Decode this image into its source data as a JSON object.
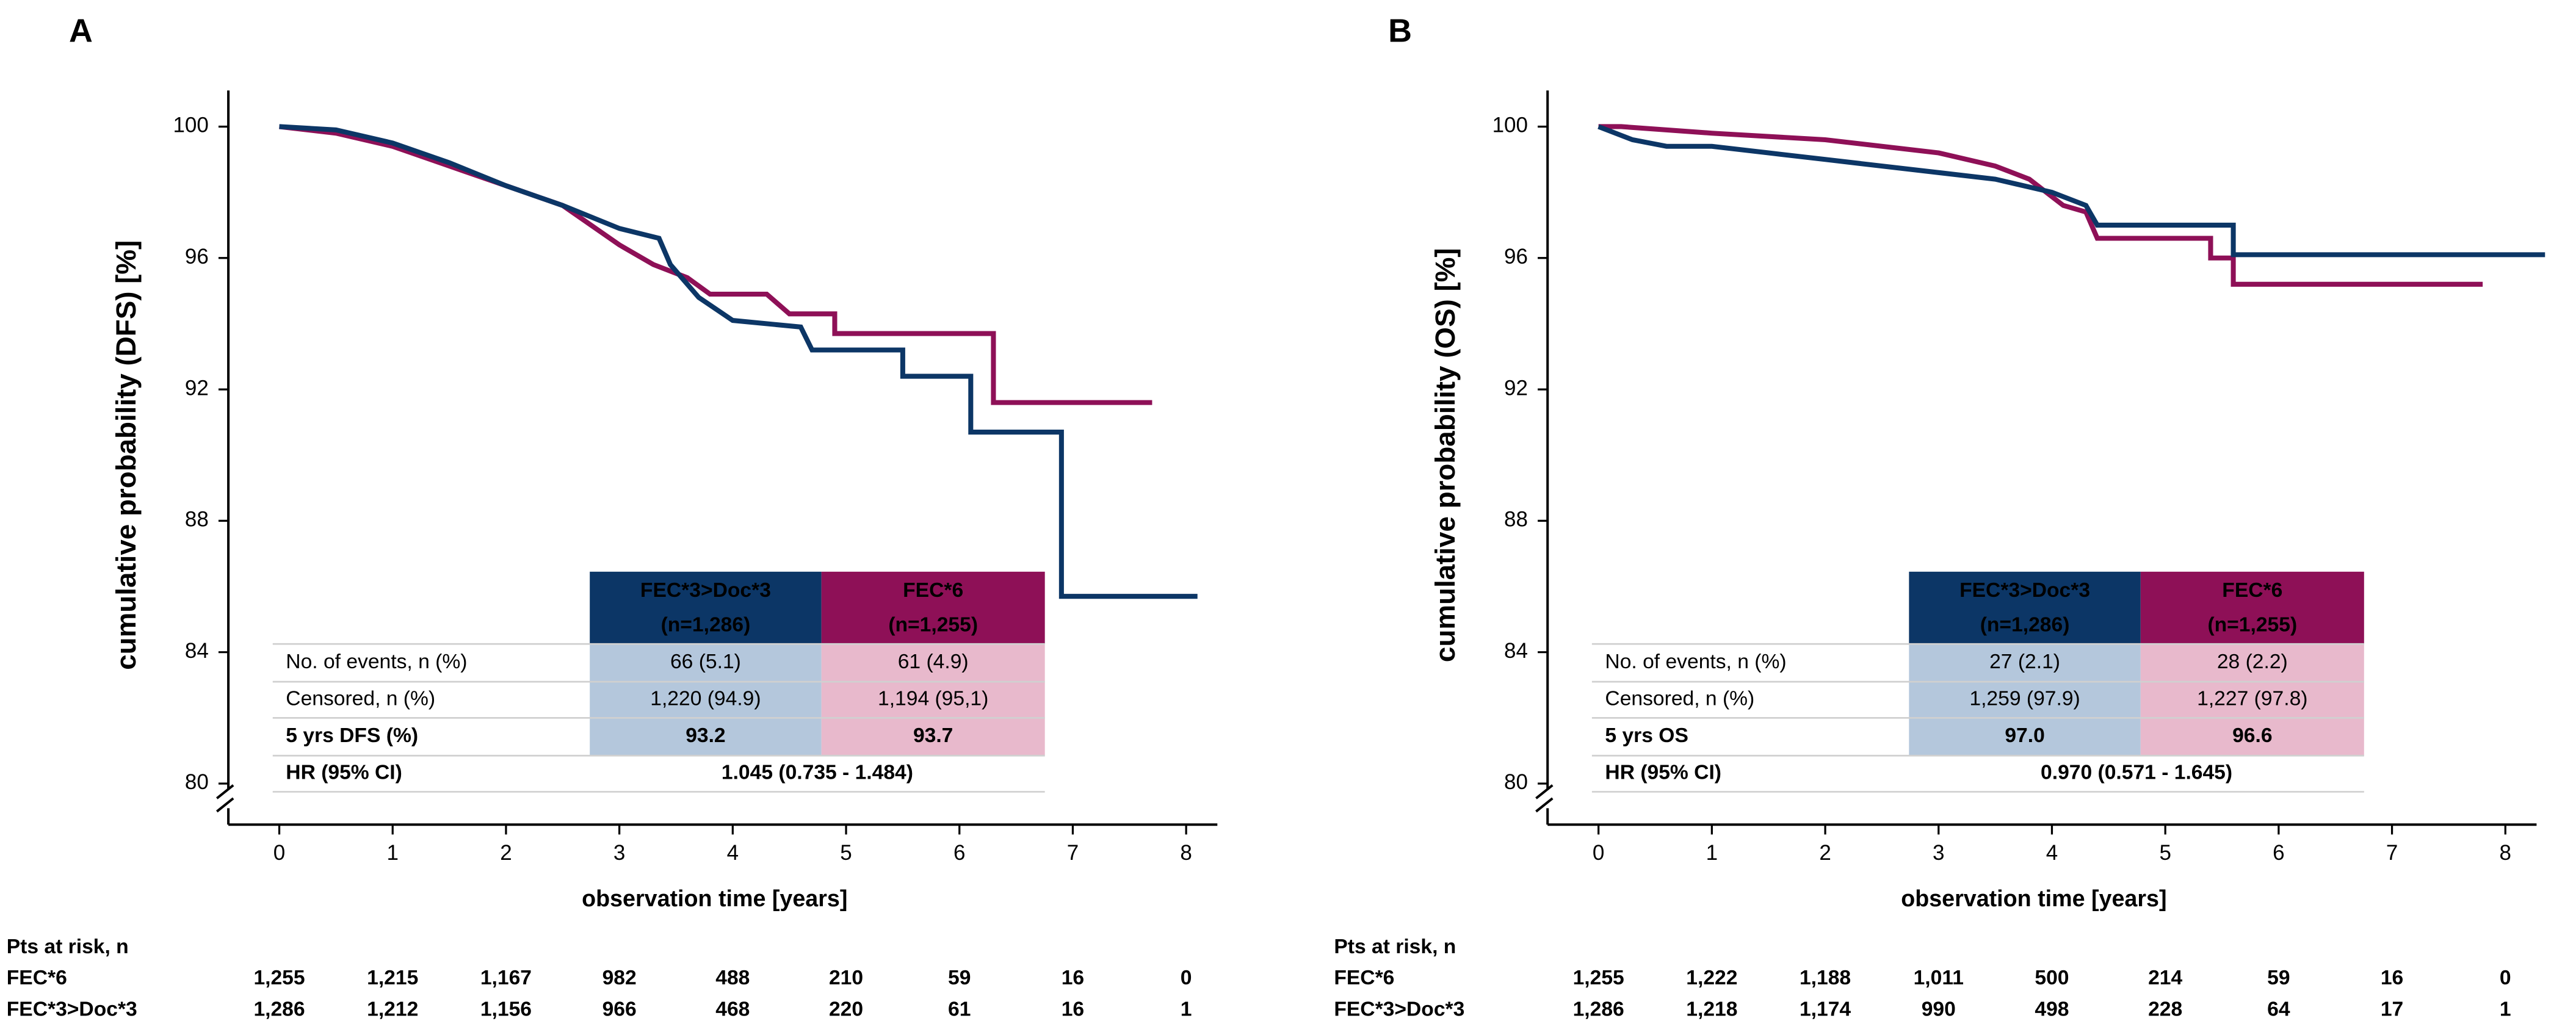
{
  "chart_data": [
    {
      "type": "line",
      "panel": "A",
      "xlabel": "observation time [years]",
      "ylabel": "cumulative probability (DFS) [%]",
      "xlim": [
        0,
        8
      ],
      "ylim": [
        80,
        100
      ],
      "xticks": [
        0,
        1,
        2,
        3,
        4,
        5,
        6,
        7,
        8
      ],
      "yticks": [
        80,
        84,
        88,
        92,
        96,
        100
      ],
      "series": [
        {
          "name": "FEC*6",
          "color": "#8e1057",
          "x": [
            0,
            0.5,
            1,
            1.5,
            2,
            2.5,
            3,
            3.3,
            3.6,
            3.8,
            4.3,
            4.5,
            4.9,
            4.9,
            6.3,
            6.3,
            7.7
          ],
          "values": [
            100,
            99.8,
            99.4,
            98.8,
            98.2,
            97.6,
            96.4,
            95.8,
            95.4,
            94.9,
            94.9,
            94.3,
            94.3,
            93.7,
            93.7,
            91.6,
            91.6
          ]
        },
        {
          "name": "FEC*3>Doc*3",
          "color": "#0c3666",
          "x": [
            0,
            0.5,
            1,
            1.5,
            2,
            2.5,
            3,
            3.35,
            3.45,
            3.7,
            4,
            4.6,
            4.7,
            5.5,
            5.5,
            6.1,
            6.1,
            6.9,
            6.9,
            8.1
          ],
          "values": [
            100,
            99.9,
            99.5,
            98.9,
            98.2,
            97.6,
            96.9,
            96.6,
            95.8,
            94.8,
            94.1,
            93.9,
            93.2,
            93.2,
            92.4,
            92.4,
            90.7,
            90.7,
            85.7,
            85.7
          ]
        }
      ],
      "table": {
        "columns": [
          [
            "FEC*3>Doc*3",
            "(n=1,286)"
          ],
          [
            "FEC*6",
            "(n=1,255)"
          ]
        ],
        "rows": [
          [
            "No. of events, n (%)",
            "66 (5.1)",
            "61 (4.9)"
          ],
          [
            "Censored, n (%)",
            "1,220 (94.9)",
            "1,194 (95,1)"
          ],
          [
            "5 yrs DFS (%)",
            "93.2",
            "93.7"
          ]
        ],
        "hr": [
          "HR (95% CI)",
          "1.045 (0.735 - 1.484)"
        ]
      },
      "risk_table": {
        "title": "Pts at risk, n",
        "rows": [
          {
            "name": "FEC*6",
            "color": "#a3449c",
            "values": [
              "1,255",
              "1,215",
              "1,167",
              "982",
              "488",
              "210",
              "59",
              "16",
              "0"
            ]
          },
          {
            "name": "FEC*3>Doc*3",
            "color": "#0c3666",
            "values": [
              "1,286",
              "1,212",
              "1,156",
              "966",
              "468",
              "220",
              "61",
              "16",
              "1"
            ]
          }
        ]
      }
    },
    {
      "type": "line",
      "panel": "B",
      "xlabel": "observation time [years]",
      "ylabel": "cumulative probability (OS) [%]",
      "xlim": [
        0,
        8
      ],
      "ylim": [
        80,
        100
      ],
      "xticks": [
        0,
        1,
        2,
        3,
        4,
        5,
        6,
        7,
        8
      ],
      "yticks": [
        80,
        84,
        88,
        92,
        96,
        100
      ],
      "series": [
        {
          "name": "FEC*6",
          "color": "#8e1057",
          "x": [
            0,
            0.2,
            1,
            2,
            3,
            3.5,
            3.8,
            4.1,
            4.3,
            4.4,
            5.4,
            5.4,
            5.6,
            5.6,
            7.8
          ],
          "values": [
            100,
            100,
            99.8,
            99.6,
            99.2,
            98.8,
            98.4,
            97.6,
            97.4,
            96.6,
            96.6,
            96.0,
            96.0,
            95.2,
            95.2
          ]
        },
        {
          "name": "FEC*3>Doc*3",
          "color": "#0c3666",
          "x": [
            0,
            0.3,
            0.6,
            1,
            1.5,
            2,
            3,
            3.5,
            4,
            4.3,
            4.4,
            5.6,
            5.6,
            8.35
          ],
          "values": [
            100,
            99.6,
            99.4,
            99.4,
            99.2,
            99.0,
            98.6,
            98.4,
            98.0,
            97.6,
            97.0,
            97.0,
            96.1,
            96.1
          ]
        }
      ],
      "table": {
        "columns": [
          [
            "FEC*3>Doc*3",
            "(n=1,286)"
          ],
          [
            "FEC*6",
            "(n=1,255)"
          ]
        ],
        "rows": [
          [
            "No. of events, n (%)",
            "27 (2.1)",
            "28 (2.2)"
          ],
          [
            "Censored, n (%)",
            "1,259 (97.9)",
            "1,227 (97.8)"
          ],
          [
            "5 yrs OS",
            "97.0",
            "96.6"
          ]
        ],
        "hr": [
          "HR (95% CI)",
          "0.970 (0.571 - 1.645)"
        ]
      },
      "risk_table": {
        "title": "Pts at risk, n",
        "rows": [
          {
            "name": "FEC*6",
            "color": "#8e1057",
            "values": [
              "1,255",
              "1,222",
              "1,188",
              "1,011",
              "500",
              "214",
              "59",
              "16",
              "0"
            ]
          },
          {
            "name": "FEC*3>Doc*3",
            "color": "#0c3666",
            "values": [
              "1,286",
              "1,218",
              "1,174",
              "990",
              "498",
              "228",
              "64",
              "17",
              "1"
            ]
          }
        ]
      }
    }
  ]
}
